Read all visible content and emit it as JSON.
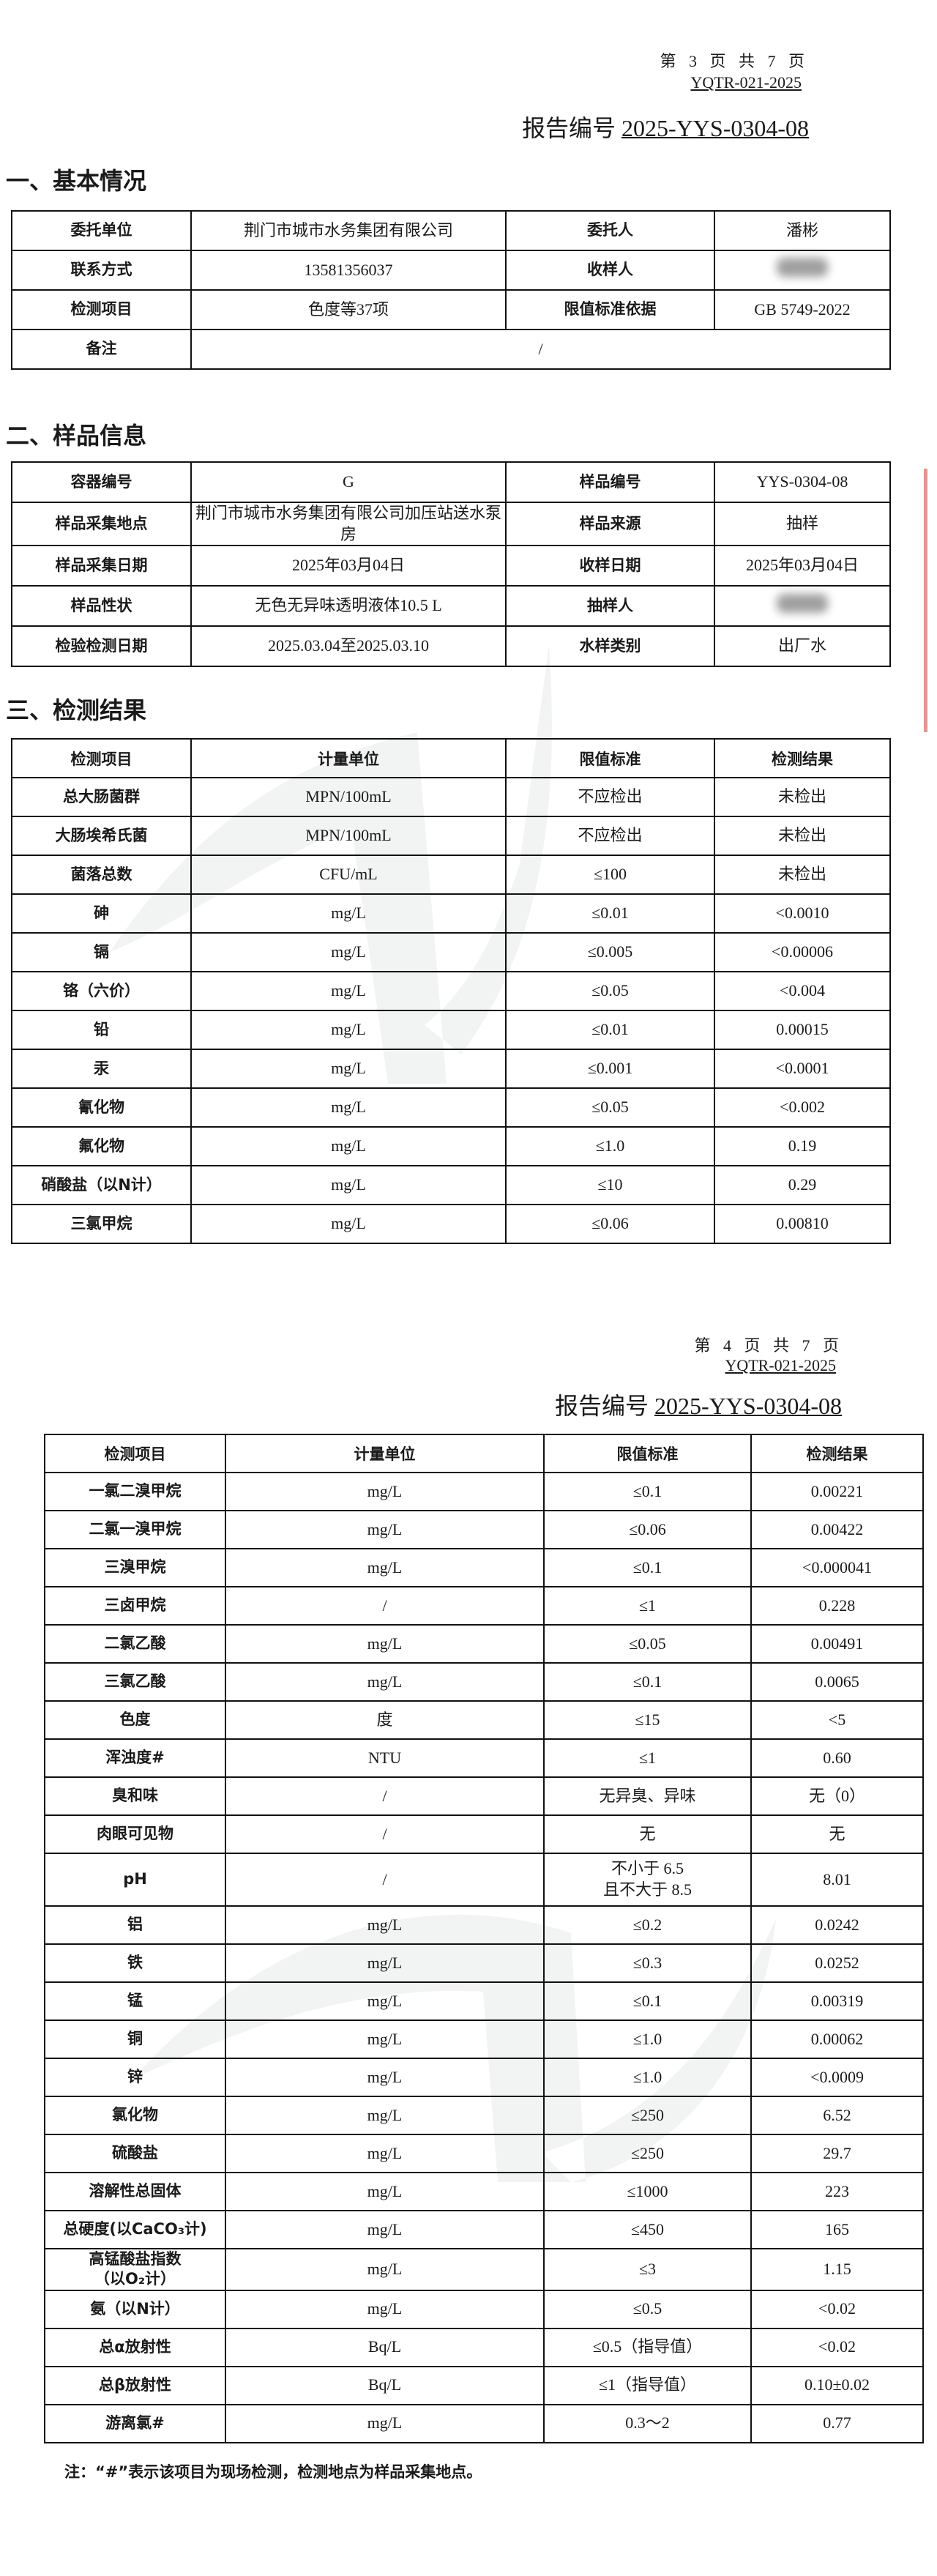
{
  "pages": [
    {
      "page_info": "第 3 页 共 7 页",
      "doc_code": "YQTR-021-2025",
      "report_label": "报告编号",
      "report_no": "2025-YYS-0304-08"
    },
    {
      "page_info": "第 4 页 共 7 页",
      "doc_code": "YQTR-021-2025",
      "report_label": "报告编号",
      "report_no": "2025-YYS-0304-08"
    }
  ],
  "basic": {
    "title": "一、基本情况",
    "rows": [
      [
        "委托单位",
        "荆门市城市水务集团有限公司",
        "委托人",
        "潘彬"
      ],
      [
        "联系方式",
        "13581356037",
        "收样人",
        ""
      ],
      [
        "检测项目",
        "色度等37项",
        "限值标准依据",
        "GB 5749-2022"
      ]
    ],
    "remark_label": "备注",
    "remark_value": "/"
  },
  "sample": {
    "title": "二、样品信息",
    "rows": [
      [
        "容器编号",
        "G",
        "样品编号",
        "YYS-0304-08"
      ],
      [
        "样品采集地点",
        "荆门市城市水务集团有限公司加压站送水泵房",
        "样品来源",
        "抽样"
      ],
      [
        "样品采集日期",
        "2025年03月04日",
        "收样日期",
        "2025年03月04日"
      ],
      [
        "样品性状",
        "无色无异味透明液体10.5 L",
        "抽样人",
        ""
      ],
      [
        "检验检测日期",
        "2025.03.04至2025.03.10",
        "水样类别",
        "出厂水"
      ]
    ]
  },
  "results": {
    "title": "三、检测结果",
    "headers": [
      "检测项目",
      "计量单位",
      "限值标准",
      "检测结果"
    ],
    "rows_page3": [
      [
        "总大肠菌群",
        "MPN/100mL",
        "不应检出",
        "未检出"
      ],
      [
        "大肠埃希氏菌",
        "MPN/100mL",
        "不应检出",
        "未检出"
      ],
      [
        "菌落总数",
        "CFU/mL",
        "≤100",
        "未检出"
      ],
      [
        "砷",
        "mg/L",
        "≤0.01",
        "<0.0010"
      ],
      [
        "镉",
        "mg/L",
        "≤0.005",
        "<0.00006"
      ],
      [
        "铬（六价）",
        "mg/L",
        "≤0.05",
        "<0.004"
      ],
      [
        "铅",
        "mg/L",
        "≤0.01",
        "0.00015"
      ],
      [
        "汞",
        "mg/L",
        "≤0.001",
        "<0.0001"
      ],
      [
        "氰化物",
        "mg/L",
        "≤0.05",
        "<0.002"
      ],
      [
        "氟化物",
        "mg/L",
        "≤1.0",
        "0.19"
      ],
      [
        "硝酸盐（以N计）",
        "mg/L",
        "≤10",
        "0.29"
      ],
      [
        "三氯甲烷",
        "mg/L",
        "≤0.06",
        "0.00810"
      ]
    ],
    "rows_page4": [
      [
        "一氯二溴甲烷",
        "mg/L",
        "≤0.1",
        "0.00221"
      ],
      [
        "二氯一溴甲烷",
        "mg/L",
        "≤0.06",
        "0.00422"
      ],
      [
        "三溴甲烷",
        "mg/L",
        "≤0.1",
        "<0.000041"
      ],
      [
        "三卤甲烷",
        "/",
        "≤1",
        "0.228"
      ],
      [
        "二氯乙酸",
        "mg/L",
        "≤0.05",
        "0.00491"
      ],
      [
        "三氯乙酸",
        "mg/L",
        "≤0.1",
        "0.0065"
      ],
      [
        "色度",
        "度",
        "≤15",
        "<5"
      ],
      [
        "浑浊度#",
        "NTU",
        "≤1",
        "0.60"
      ],
      [
        "臭和味",
        "/",
        "无异臭、异味",
        "无（0）"
      ],
      [
        "肉眼可见物",
        "/",
        "无",
        "无"
      ],
      [
        "pH",
        "/",
        "不小于 6.5\n且不大于 8.5",
        "8.01"
      ],
      [
        "铝",
        "mg/L",
        "≤0.2",
        "0.0242"
      ],
      [
        "铁",
        "mg/L",
        "≤0.3",
        "0.0252"
      ],
      [
        "锰",
        "mg/L",
        "≤0.1",
        "0.00319"
      ],
      [
        "铜",
        "mg/L",
        "≤1.0",
        "0.00062"
      ],
      [
        "锌",
        "mg/L",
        "≤1.0",
        "<0.0009"
      ],
      [
        "氯化物",
        "mg/L",
        "≤250",
        "6.52"
      ],
      [
        "硫酸盐",
        "mg/L",
        "≤250",
        "29.7"
      ],
      [
        "溶解性总固体",
        "mg/L",
        "≤1000",
        "223"
      ],
      [
        "总硬度(以CaCO₃计)",
        "mg/L",
        "≤450",
        "165"
      ],
      [
        "高锰酸盐指数\n（以O₂计）",
        "mg/L",
        "≤3",
        "1.15"
      ],
      [
        "氨（以N计）",
        "mg/L",
        "≤0.5",
        "<0.02"
      ],
      [
        "总α放射性",
        "Bq/L",
        "≤0.5（指导值）",
        "<0.02"
      ],
      [
        "总β放射性",
        "Bq/L",
        "≤1（指导值）",
        "0.10±0.02"
      ],
      [
        "游离氯#",
        "mg/L",
        "0.3～2",
        "0.77"
      ]
    ],
    "note": "注：“#”表示该项目为现场检测，检测地点为样品采集地点。"
  },
  "colors": {
    "stamp": "#e2483f",
    "line": "#111111",
    "watermark": "#9aa0a6"
  }
}
